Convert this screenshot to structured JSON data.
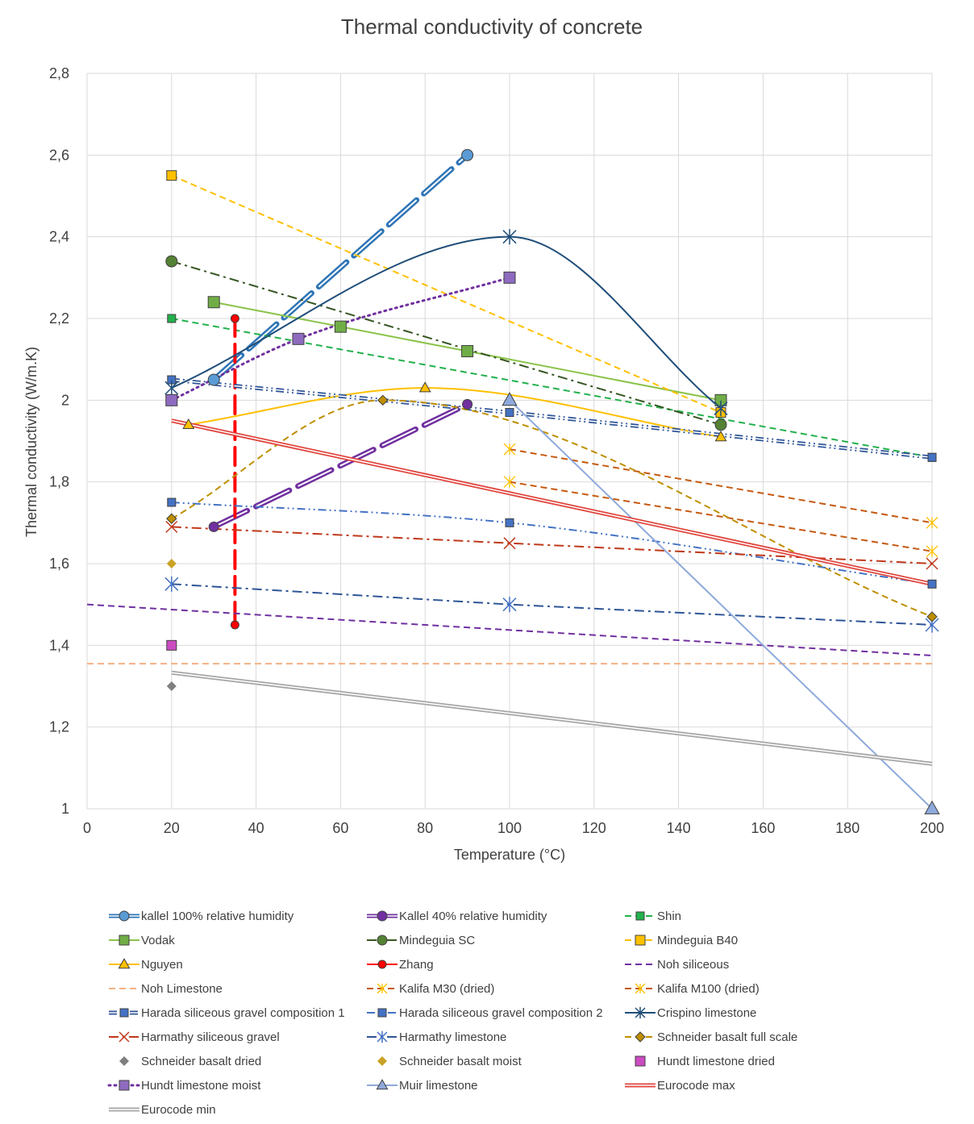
{
  "chart_data": {
    "type": "line",
    "title": "Thermal conductivity of concrete",
    "xlabel": "Temperature (°C)",
    "ylabel": "Thermal conductivity (W/m.K)",
    "xlim": [
      0,
      200
    ],
    "ylim": [
      1,
      2.8
    ],
    "x_ticks": [
      0,
      20,
      40,
      60,
      80,
      100,
      120,
      140,
      160,
      180,
      200
    ],
    "x_tick_labels": [
      "0",
      "20",
      "40",
      "60",
      "80",
      "100",
      "120",
      "140",
      "160",
      "180",
      "200"
    ],
    "y_ticks": [
      1,
      1.2,
      1.4,
      1.6,
      1.8,
      2,
      2.2,
      2.4,
      2.6,
      2.8
    ],
    "y_tick_labels": [
      "1",
      "1,2",
      "1,4",
      "1,6",
      "1,8",
      "2",
      "2,2",
      "2,4",
      "2,6",
      "2,8"
    ],
    "grid": true,
    "legend_position": "bottom",
    "series": [
      {
        "name": "kallel 100% relative humidity",
        "color": "#2E75B6",
        "line": "double",
        "dash": "longdash",
        "marker": "circle",
        "points": [
          [
            30,
            2.05
          ],
          [
            90,
            2.6
          ]
        ]
      },
      {
        "name": "Kallel 40% relative humidity",
        "color": "#7030A0",
        "line": "double",
        "dash": "longdash",
        "marker": "circle",
        "points": [
          [
            30,
            1.69
          ],
          [
            90,
            1.99
          ]
        ]
      },
      {
        "name": "Shin",
        "color": "#22B14C",
        "dash": "dash",
        "marker": "square",
        "points": [
          [
            20,
            2.2
          ],
          [
            200,
            1.86
          ]
        ]
      },
      {
        "name": "Vodak",
        "color": "#8BC34A",
        "dash": "solid",
        "marker": "square",
        "points": [
          [
            30,
            2.24
          ],
          [
            60,
            2.18
          ],
          [
            90,
            2.12
          ],
          [
            150,
            2.0
          ]
        ]
      },
      {
        "name": "Mindeguia SC",
        "color": "#375623",
        "dash": "dashdot",
        "marker": "circle",
        "points": [
          [
            20,
            2.34
          ],
          [
            150,
            1.94
          ]
        ]
      },
      {
        "name": "Mindeguia B40",
        "color": "#FFC000",
        "dash": "dash",
        "marker": "square",
        "points": [
          [
            20,
            2.55
          ],
          [
            150,
            1.97
          ]
        ]
      },
      {
        "name": "Nguyen",
        "color": "#FFC000",
        "dash": "solid",
        "marker": "triangle",
        "smooth": true,
        "points": [
          [
            24,
            1.94
          ],
          [
            80,
            2.03
          ],
          [
            150,
            1.91
          ]
        ]
      },
      {
        "name": "Zhang",
        "color": "#FF0000",
        "dash": "bigdash",
        "marker": "circle",
        "points": [
          [
            35,
            2.2
          ],
          [
            35,
            1.45
          ]
        ]
      },
      {
        "name": "Noh siliceous",
        "color": "#7030A0",
        "dash": "dash",
        "marker": "none",
        "points": [
          [
            0,
            1.5
          ],
          [
            200,
            1.375
          ]
        ]
      },
      {
        "name": "Noh Limestone",
        "color": "#F4B183",
        "dash": "dash",
        "marker": "none",
        "points": [
          [
            0,
            1.355
          ],
          [
            200,
            1.355
          ]
        ]
      },
      {
        "name": "Kalifa M30 (dried)",
        "color": "#C55A11",
        "dash": "dash",
        "marker": "star",
        "points": [
          [
            100,
            1.88
          ],
          [
            200,
            1.7
          ]
        ]
      },
      {
        "name": "Kalifa M100 (dried)",
        "color": "#C55A11",
        "dash": "dash",
        "marker": "star",
        "points": [
          [
            100,
            1.8
          ],
          [
            200,
            1.63
          ]
        ]
      },
      {
        "name": "Harada siliceous gravel composition 1",
        "color": "#2F5597",
        "line": "double",
        "dash": "dashdotdot",
        "marker": "square",
        "points": [
          [
            20,
            2.05
          ],
          [
            100,
            1.97
          ],
          [
            200,
            1.86
          ]
        ]
      },
      {
        "name": "Harada siliceous gravel composition 2",
        "color": "#4472C4",
        "dash": "dashdotdot",
        "marker": "square",
        "smooth": true,
        "points": [
          [
            20,
            1.75
          ],
          [
            100,
            1.7
          ],
          [
            200,
            1.55
          ]
        ]
      },
      {
        "name": "Crispino limestone",
        "color": "#1F4E79",
        "dash": "solid",
        "marker": "asterisk",
        "smooth": true,
        "points": [
          [
            20,
            2.03
          ],
          [
            100,
            2.4
          ],
          [
            150,
            1.98
          ]
        ]
      },
      {
        "name": "Harmathy siliceous gravel",
        "color": "#C0391B",
        "dash": "dashdot",
        "marker": "x",
        "points": [
          [
            20,
            1.69
          ],
          [
            100,
            1.65
          ],
          [
            200,
            1.6
          ]
        ]
      },
      {
        "name": "Harmathy limestone",
        "color": "#2F5597",
        "dash": "dashdot",
        "marker": "asterisk",
        "points": [
          [
            20,
            1.55
          ],
          [
            100,
            1.5
          ],
          [
            200,
            1.45
          ]
        ]
      },
      {
        "name": "Schneider basalt full scale",
        "color": "#BF8F00",
        "dash": "dash",
        "marker": "diamond",
        "smooth": true,
        "points": [
          [
            20,
            1.71
          ],
          [
            70,
            2.0
          ],
          [
            200,
            1.47
          ]
        ]
      },
      {
        "name": "Schneider basalt dried",
        "color": "#808080",
        "dash": "none",
        "marker": "diamond",
        "points": [
          [
            20,
            1.3
          ]
        ]
      },
      {
        "name": "Schneider basalt moist",
        "color": "#C9A227",
        "dash": "none",
        "marker": "diamond",
        "points": [
          [
            20,
            1.6
          ]
        ]
      },
      {
        "name": "Hundt limestone dried",
        "color": "#CC4BC2",
        "dash": "none",
        "marker": "square",
        "points": [
          [
            20,
            1.4
          ]
        ]
      },
      {
        "name": "Hundt limestone moist",
        "color": "#7030A0",
        "dash": "dot",
        "marker": "square",
        "smooth": true,
        "points": [
          [
            20,
            2.0
          ],
          [
            50,
            2.15
          ],
          [
            100,
            2.3
          ]
        ]
      },
      {
        "name": "Muir limestone",
        "color": "#8EA9DB",
        "dash": "solid",
        "marker": "triangle",
        "points": [
          [
            100,
            2.0
          ],
          [
            200,
            1.0
          ]
        ]
      },
      {
        "name": "Eurocode max",
        "color": "#E0443C",
        "line": "double",
        "dash": "solid",
        "marker": "none",
        "points": [
          [
            20,
            1.95
          ],
          [
            200,
            1.55
          ]
        ]
      },
      {
        "name": "Eurocode min",
        "color": "#A6A6A6",
        "line": "double",
        "dash": "solid",
        "marker": "none",
        "points": [
          [
            20,
            1.333
          ],
          [
            200,
            1.11
          ]
        ]
      }
    ]
  }
}
